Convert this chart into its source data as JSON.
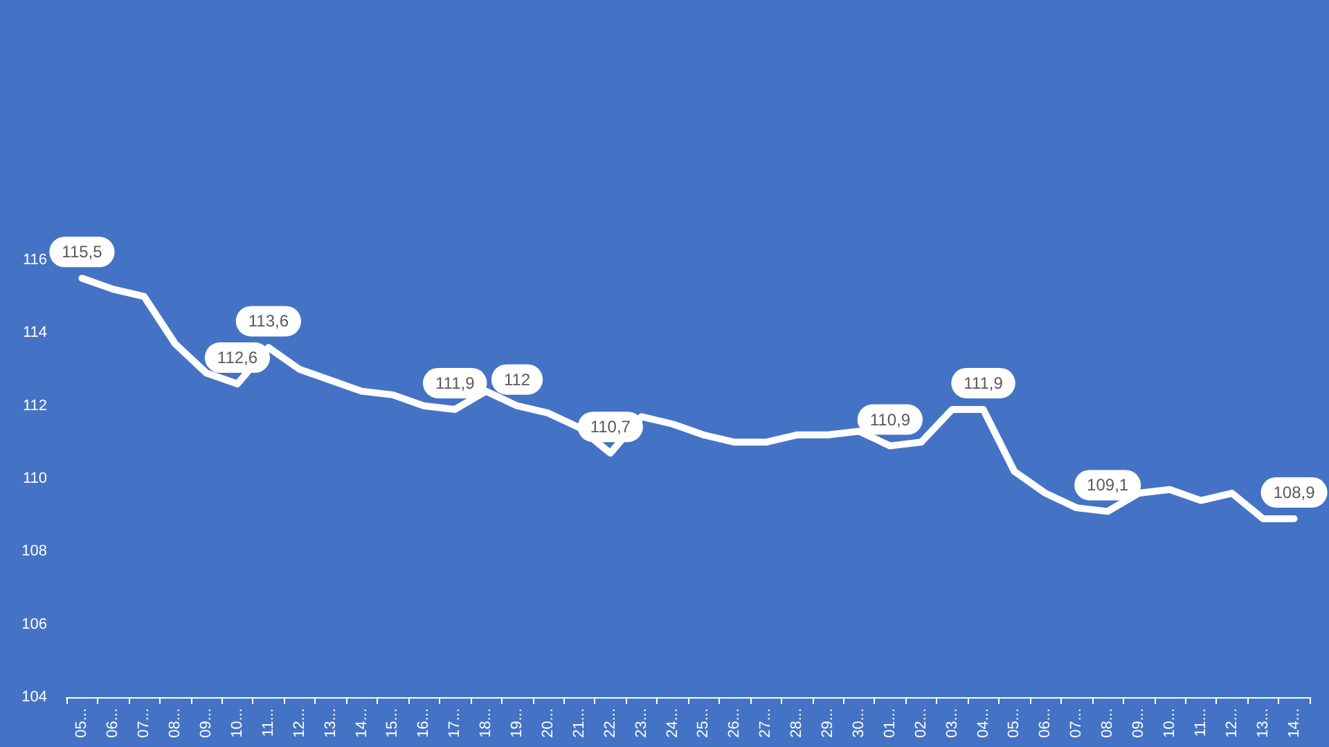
{
  "chart_data": {
    "type": "line",
    "categories": [
      "05...",
      "06...",
      "07...",
      "08...",
      "09...",
      "10...",
      "11...",
      "12...",
      "13...",
      "14...",
      "15...",
      "16...",
      "17...",
      "18...",
      "19...",
      "20...",
      "21...",
      "22...",
      "23...",
      "24...",
      "25...",
      "26...",
      "27...",
      "28...",
      "29...",
      "30...",
      "01...",
      "02...",
      "03...",
      "04...",
      "05...",
      "06...",
      "07...",
      "08...",
      "09...",
      "10...",
      "11...",
      "12...",
      "13...",
      "14..."
    ],
    "series": [
      {
        "color": "#ffffff",
        "values": [
          115.5,
          115.2,
          115.0,
          113.7,
          112.9,
          112.6,
          113.6,
          113.0,
          112.7,
          112.4,
          112.3,
          112.0,
          111.9,
          112.4,
          112.0,
          111.8,
          111.4,
          110.7,
          111.7,
          111.5,
          111.2,
          111.0,
          111.0,
          111.2,
          111.2,
          111.3,
          110.9,
          111.0,
          111.9,
          111.9,
          110.2,
          109.6,
          109.2,
          109.1,
          109.6,
          109.7,
          109.4,
          109.6,
          108.9,
          108.9
        ],
        "value_labels": [
          "115,5",
          null,
          null,
          null,
          null,
          "112,6",
          "113,6",
          null,
          null,
          null,
          null,
          null,
          "111,9",
          null,
          "112",
          null,
          null,
          "110,7",
          null,
          null,
          null,
          null,
          null,
          null,
          null,
          null,
          "110,9",
          null,
          null,
          "111,9",
          null,
          null,
          null,
          "109,1",
          null,
          null,
          null,
          null,
          null,
          "108,9"
        ]
      }
    ],
    "ylim": [
      104,
      116
    ],
    "yticks": [
      104,
      106,
      108,
      110,
      112,
      114,
      116
    ],
    "marker": "none",
    "line_style": "solid"
  }
}
